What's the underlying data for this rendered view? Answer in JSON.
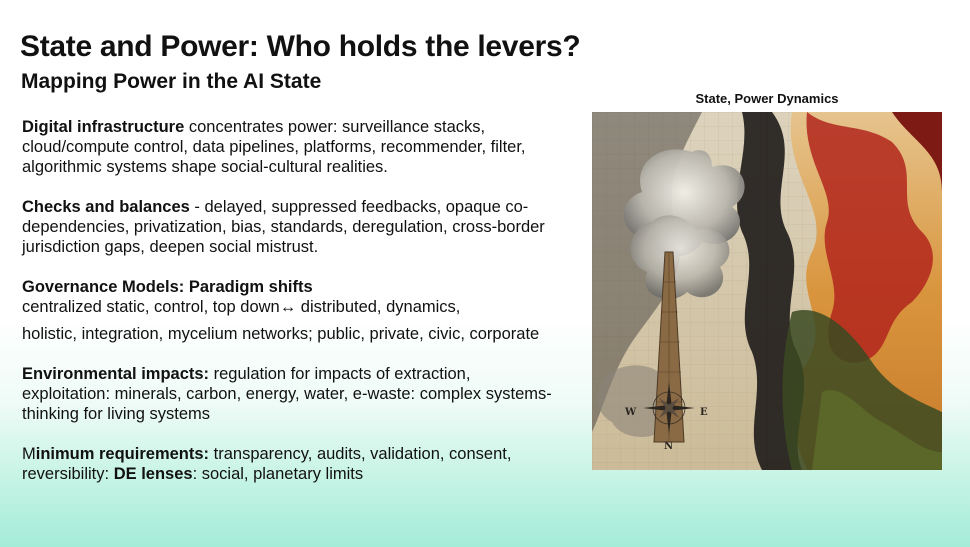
{
  "slide": {
    "title": "State and Power: Who holds the levers?",
    "subtitle": "Mapping Power in the AI State"
  },
  "paragraphs": {
    "digital": {
      "bold": "Digital infrastructure",
      "text": " concentrates power: surveillance stacks, cloud/compute control, data pipelines, platforms, recommender, filter, algorithmic systems shape social-cultural realities."
    },
    "checks": {
      "bold": "Checks and balances",
      "text": " - delayed, suppressed feedbacks, opaque co-dependencies, privatization, bias, standards, deregulation, cross-border jurisdiction gaps, deepen social mistrust."
    },
    "governance": {
      "bold": "Governance Models: Paradigm shifts",
      "line1": "centralized static, control, top down↔ distributed, dynamics,",
      "line2": "holistic, integration, mycelium networks; public, private, civic, corporate"
    },
    "environment": {
      "bold": "Environmental impacts:",
      "text": " regulation for impacts of extraction, exploitation: minerals, carbon, energy, water, e-waste: complex systems-thinking for living systems"
    },
    "minimum": {
      "lead": "M",
      "bold": "inimum requirements:",
      "text": " transparency, audits, validation, consent, reversibility: ",
      "bold2": "DE lenses",
      "text2": ": social, planetary limits"
    }
  },
  "figure": {
    "caption": "State, Power Dynamics",
    "compass": {
      "w": "W",
      "e": "E",
      "n": "N"
    }
  }
}
